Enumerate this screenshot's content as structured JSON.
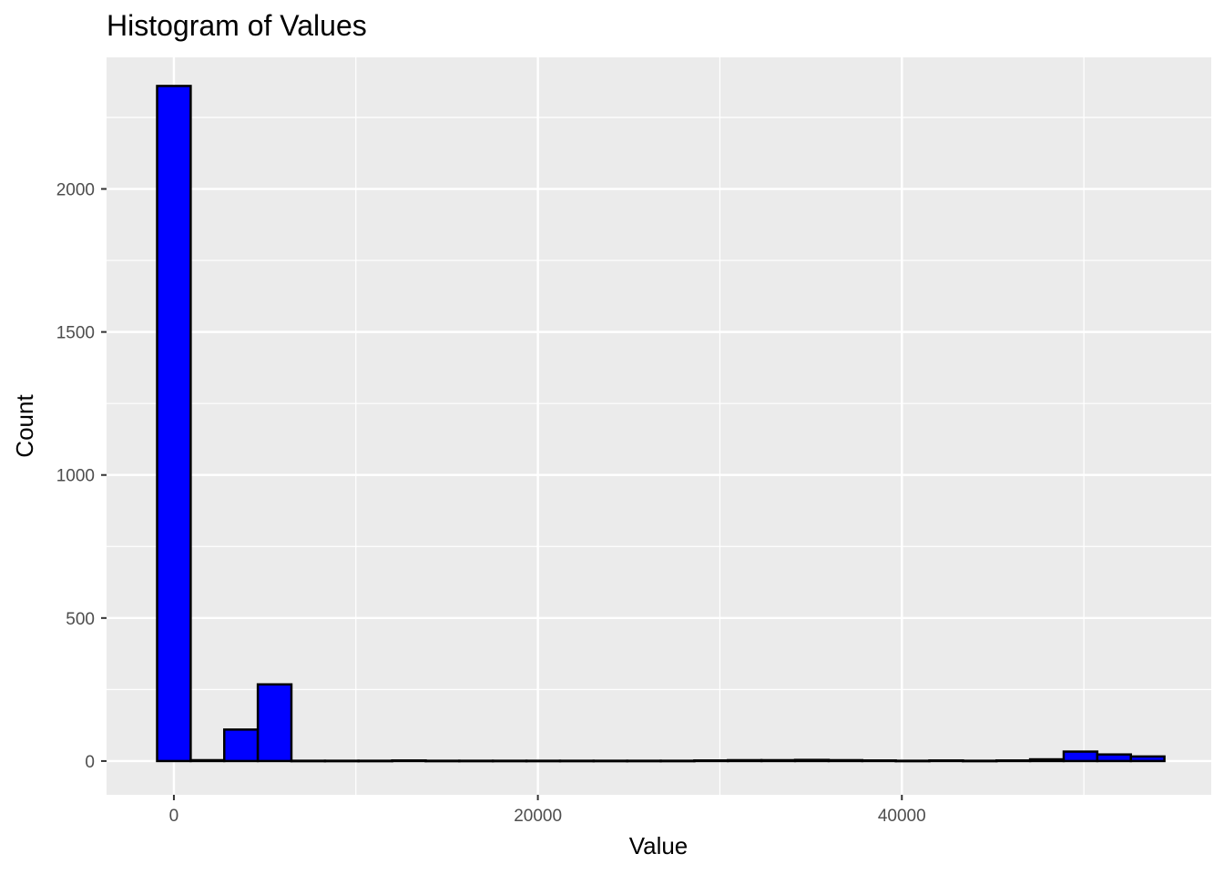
{
  "chart_data": {
    "type": "bar",
    "title": "Histogram of Values",
    "xlabel": "Value",
    "ylabel": "Count",
    "xlim": [
      -3700,
      57000
    ],
    "ylim": [
      -118,
      2460
    ],
    "x_ticks": [
      0,
      20000,
      40000
    ],
    "x_tick_labels": [
      "0",
      "20000",
      "40000"
    ],
    "x_minor_ticks": [
      10000,
      30000,
      50000
    ],
    "y_ticks": [
      0,
      500,
      1000,
      1500,
      2000
    ],
    "y_tick_labels": [
      "0",
      "500",
      "1000",
      "1500",
      "2000"
    ],
    "y_minor_ticks": [
      250,
      750,
      1250,
      1750,
      2250
    ],
    "grid": true,
    "bin_width": 1845,
    "bin_centers": [
      0,
      1845,
      3690,
      5535,
      7380,
      9225,
      11070,
      12915,
      14760,
      16605,
      18450,
      20295,
      22140,
      23985,
      25830,
      27675,
      29520,
      31365,
      33210,
      35055,
      36900,
      38745,
      40590,
      42435,
      44280,
      46125,
      47970,
      49815,
      51660,
      53505
    ],
    "counts": [
      2360,
      3,
      110,
      268,
      1,
      1,
      1,
      2,
      1,
      1,
      1,
      1,
      1,
      1,
      1,
      1,
      2,
      3,
      3,
      4,
      3,
      2,
      1,
      2,
      1,
      2,
      6,
      33,
      23,
      16
    ],
    "fill_color": "#0000ff",
    "outline_color": "#000000",
    "panel_background": "#ebebeb",
    "grid_color": "#ffffff"
  }
}
